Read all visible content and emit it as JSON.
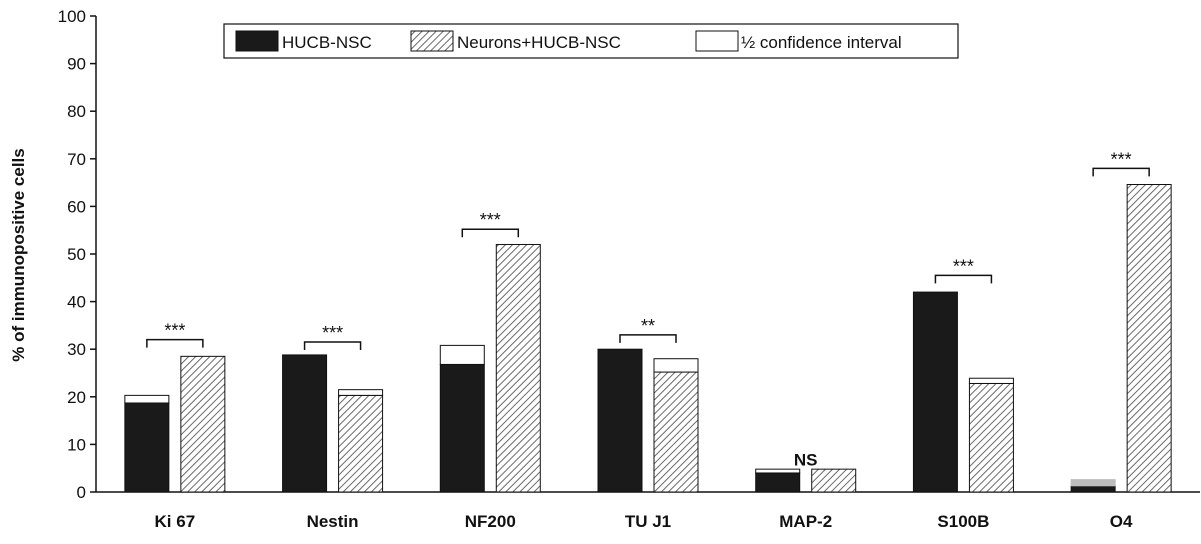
{
  "chart_data": {
    "type": "bar",
    "title": "",
    "xlabel": "",
    "ylabel": "% of immunopositive cells",
    "ylim": [
      0,
      100
    ],
    "yticks": [
      0,
      10,
      20,
      30,
      40,
      50,
      60,
      70,
      80,
      90,
      100
    ],
    "grid": false,
    "legend_position": "top-center",
    "categories": [
      "Ki 67",
      "Nestin",
      "NF200",
      "TU J1",
      "MAP-2",
      "S100B",
      "O4"
    ],
    "legend": [
      "HUCB-NSC",
      "Neurons+HUCB-NSC",
      "½ confidence interval"
    ],
    "series": [
      {
        "name": "HUCB-NSC",
        "color": "#1a1a1a",
        "values": [
          18.7,
          28.8,
          26.8,
          30.0,
          4.0,
          42.0,
          1.3
        ],
        "half_ci": [
          1.6,
          0.0,
          4.0,
          0.0,
          0.8,
          0.0,
          1.3
        ]
      },
      {
        "name": "Neurons+HUCB-NSC",
        "color": "hatched",
        "values": [
          28.5,
          20.3,
          52.0,
          25.2,
          4.8,
          22.8,
          64.6
        ],
        "half_ci": [
          0.0,
          1.2,
          0.0,
          2.8,
          0.0,
          1.1,
          0.0
        ]
      }
    ],
    "annotations": [
      {
        "category": "Ki 67",
        "text": "***",
        "bracket": true,
        "y": 32.0
      },
      {
        "category": "Nestin",
        "text": "***",
        "bracket": true,
        "y": 31.5
      },
      {
        "category": "NF200",
        "text": "***",
        "bracket": true,
        "y": 55.2
      },
      {
        "category": "TU J1",
        "text": "**",
        "bracket": true,
        "y": 33.0
      },
      {
        "category": "MAP-2",
        "text": "NS",
        "bracket": false,
        "y": 6.0
      },
      {
        "category": "S100B",
        "text": "***",
        "bracket": true,
        "y": 45.5
      },
      {
        "category": "O4",
        "text": "***",
        "bracket": true,
        "y": 68.0
      }
    ]
  }
}
